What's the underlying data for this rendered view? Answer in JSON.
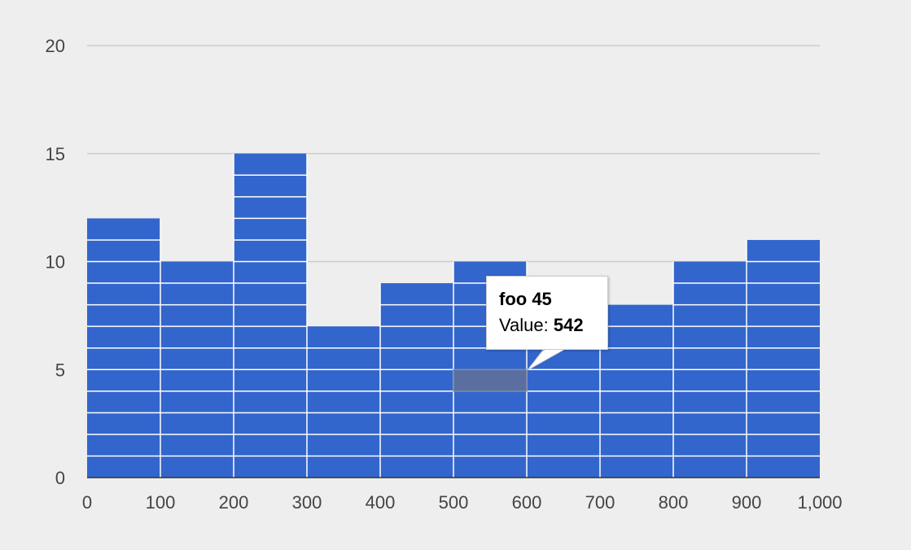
{
  "chart_data": {
    "type": "bar",
    "subtype": "histogram",
    "bins": [
      {
        "start": 0,
        "end": 100,
        "count": 12
      },
      {
        "start": 100,
        "end": 200,
        "count": 10
      },
      {
        "start": 200,
        "end": 300,
        "count": 15
      },
      {
        "start": 300,
        "end": 400,
        "count": 7
      },
      {
        "start": 400,
        "end": 500,
        "count": 9
      },
      {
        "start": 500,
        "end": 600,
        "count": 10
      },
      {
        "start": 600,
        "end": 700,
        "count": 8
      },
      {
        "start": 700,
        "end": 800,
        "count": 8
      },
      {
        "start": 800,
        "end": 900,
        "count": 10
      },
      {
        "start": 900,
        "end": 1000,
        "count": 11
      }
    ],
    "xlim": [
      0,
      1000
    ],
    "ylim": [
      0,
      20
    ],
    "x_ticks": [
      "0",
      "100",
      "200",
      "300",
      "400",
      "500",
      "600",
      "700",
      "800",
      "900",
      "1,000"
    ],
    "y_ticks": [
      "0",
      "5",
      "10",
      "15",
      "20"
    ],
    "grid": true,
    "title": "",
    "xlabel": "",
    "ylabel": "",
    "colors": {
      "bar": "#3366cc",
      "segment_line": "#ffffff",
      "gridline": "#cccccc",
      "baseline": "#333333",
      "background": "#eeeeee",
      "highlight": "#5a6fa0"
    },
    "highlight": {
      "bin_start": 500,
      "stack_level": 5
    }
  },
  "tooltip": {
    "title": "foo 45",
    "value_label": "Value:",
    "value": "542"
  }
}
